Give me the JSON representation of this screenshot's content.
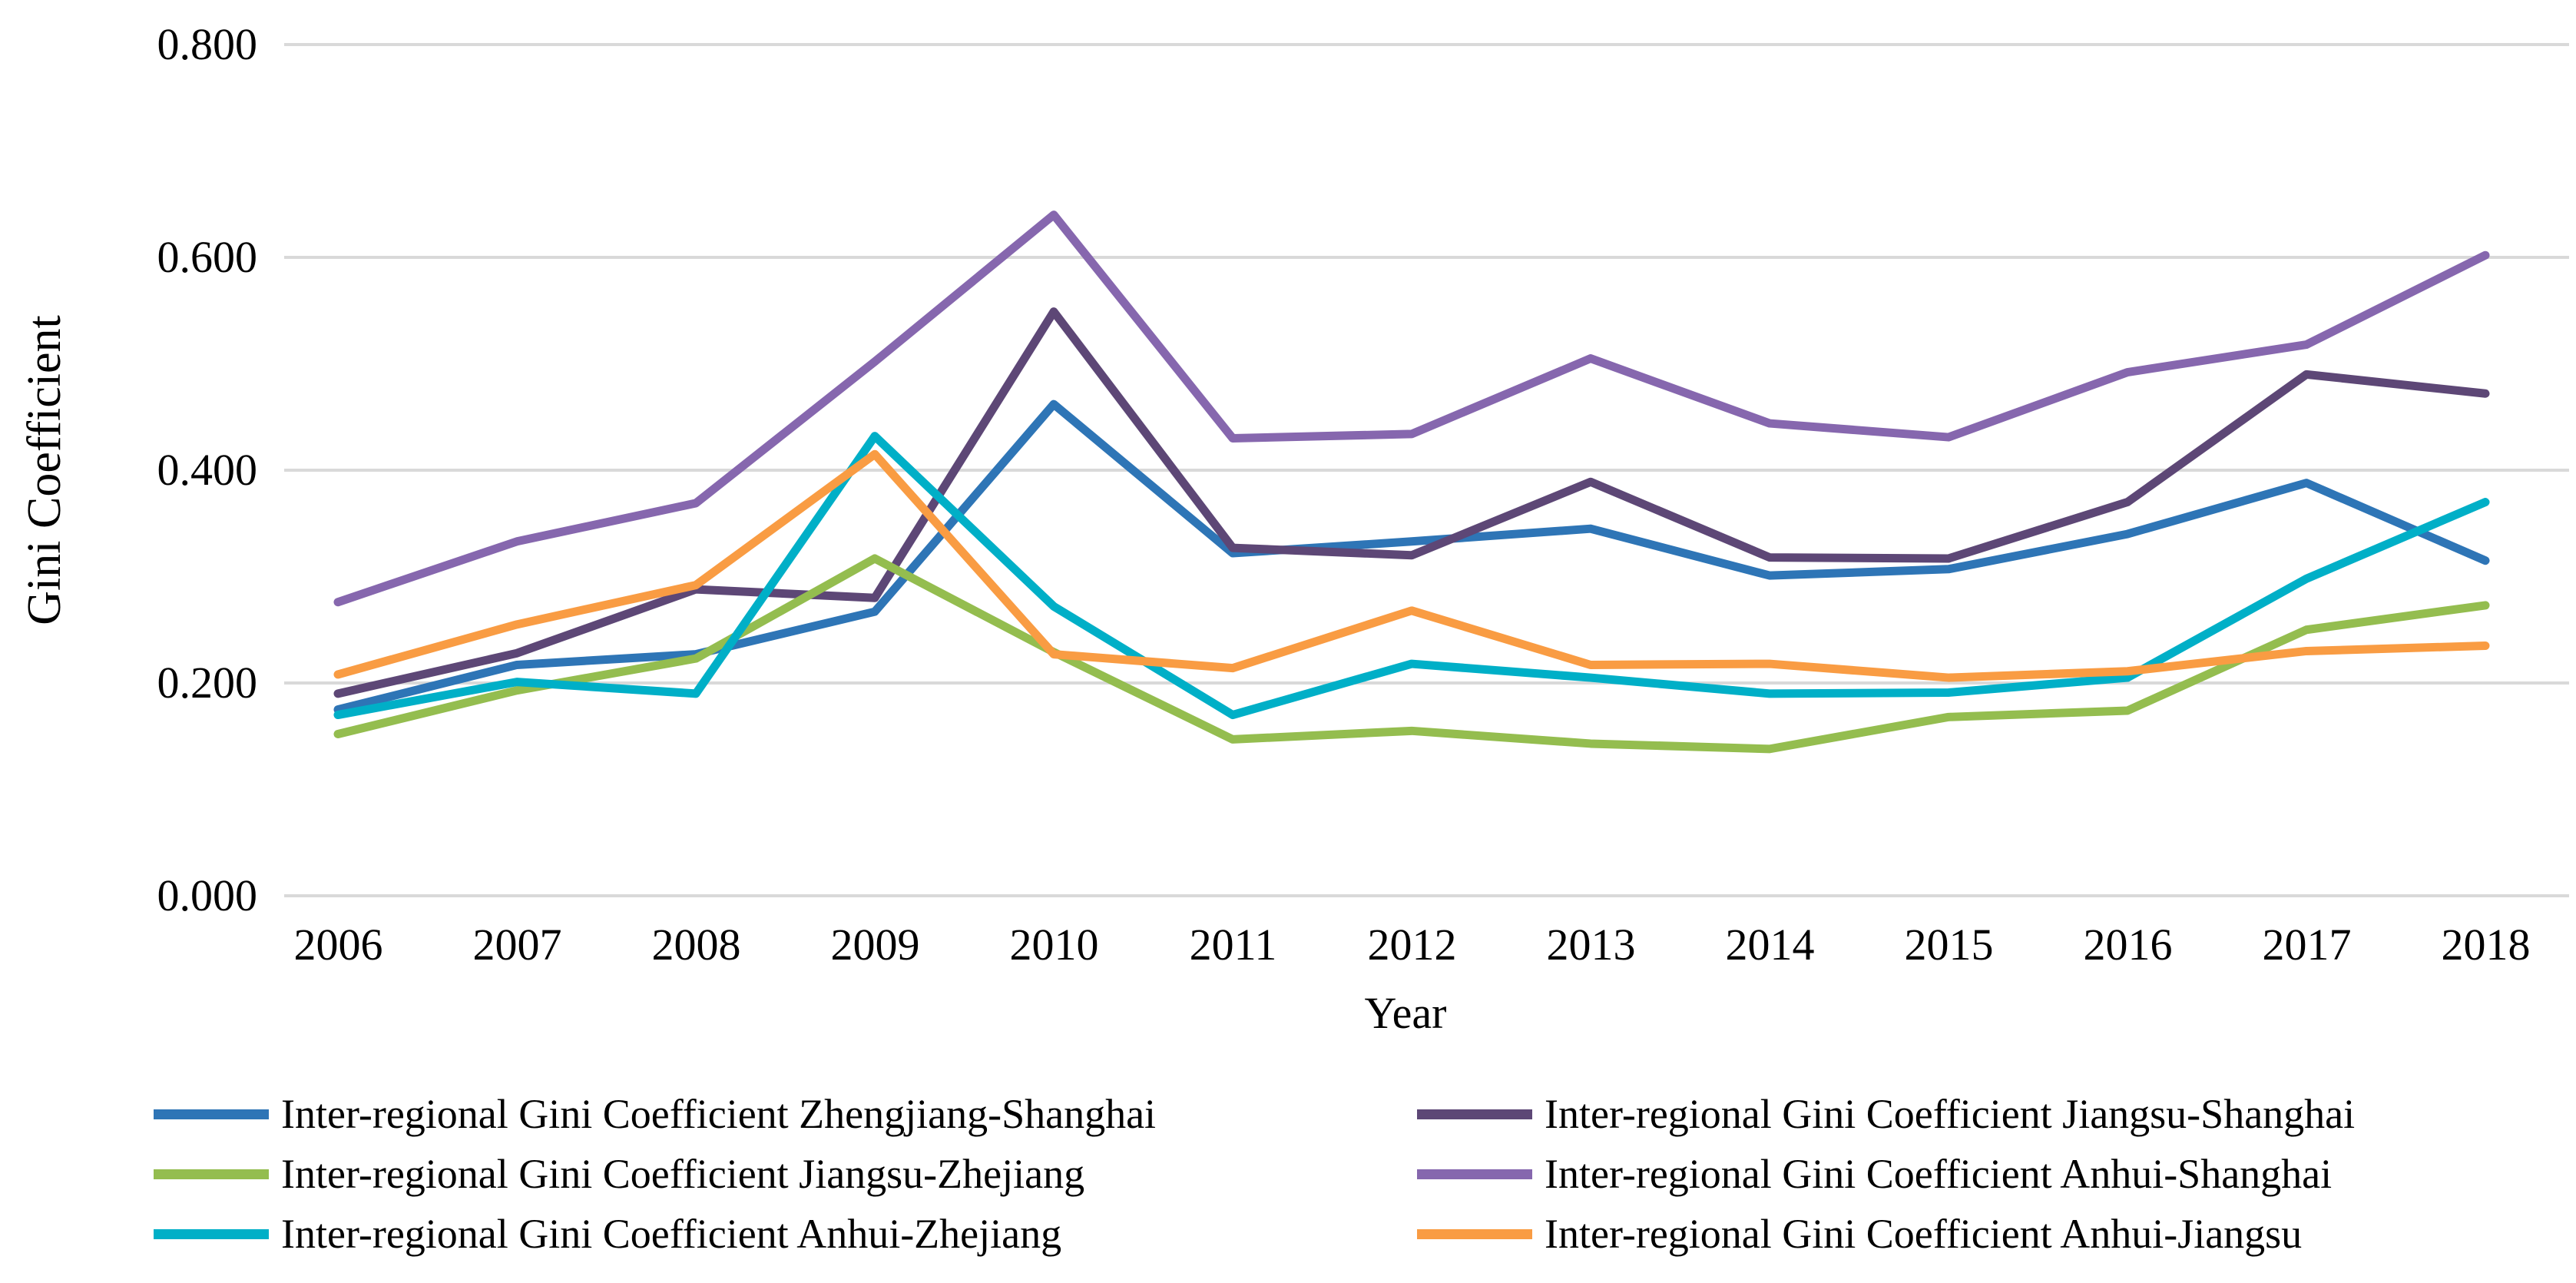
{
  "chart_data": {
    "type": "line",
    "title": "",
    "xlabel": "Year",
    "ylabel": "Gini Coefficient",
    "categories": [
      "2006",
      "2007",
      "2008",
      "2009",
      "2010",
      "2011",
      "2012",
      "2013",
      "2014",
      "2015",
      "2016",
      "2017",
      "2018"
    ],
    "y_ticks": [
      "0.800",
      "0.600",
      "0.400",
      "0.200",
      "0.000"
    ],
    "ylim": [
      0,
      0.8
    ],
    "grid": true,
    "legend_position": "bottom-two-columns",
    "gridline_color": "#D9D9D9",
    "series": [
      {
        "name": "Inter-regional Gini Coefficient Zhengjiang-Shanghai",
        "color": "#2E75B6",
        "values": [
          0.175,
          0.217,
          0.227,
          0.267,
          0.462,
          0.322,
          0.333,
          0.345,
          0.301,
          0.307,
          0.34,
          0.388,
          0.315
        ]
      },
      {
        "name": "Inter-regional Gini Coefficient Jiangsu-Shanghai",
        "color": "#5D4776",
        "values": [
          0.19,
          0.228,
          0.288,
          0.28,
          0.549,
          0.327,
          0.32,
          0.389,
          0.318,
          0.317,
          0.37,
          0.49,
          0.472
        ]
      },
      {
        "name": "Inter-regional Gini Coefficient Jiangsu-Zhejiang",
        "color": "#94BD4F",
        "values": [
          0.152,
          0.193,
          0.223,
          0.317,
          0.229,
          0.147,
          0.155,
          0.143,
          0.138,
          0.168,
          0.174,
          0.25,
          0.273
        ]
      },
      {
        "name": "Inter-regional Gini Coefficient Anhui-Shanghai",
        "color": "#8667AE",
        "values": [
          0.276,
          0.333,
          0.369,
          0.502,
          0.64,
          0.43,
          0.434,
          0.505,
          0.444,
          0.431,
          0.492,
          0.518,
          0.602
        ]
      },
      {
        "name": "Inter-regional Gini Coefficient Anhui-Zhejiang",
        "color": "#00AFC7",
        "values": [
          0.17,
          0.201,
          0.19,
          0.432,
          0.272,
          0.17,
          0.218,
          0.205,
          0.19,
          0.191,
          0.205,
          0.298,
          0.37
        ]
      },
      {
        "name": "Inter-regional Gini Coefficient Anhui-Jiangsu",
        "color": "#F99C43",
        "values": [
          0.208,
          0.255,
          0.292,
          0.415,
          0.227,
          0.214,
          0.268,
          0.217,
          0.218,
          0.205,
          0.211,
          0.23,
          0.235
        ]
      }
    ]
  }
}
